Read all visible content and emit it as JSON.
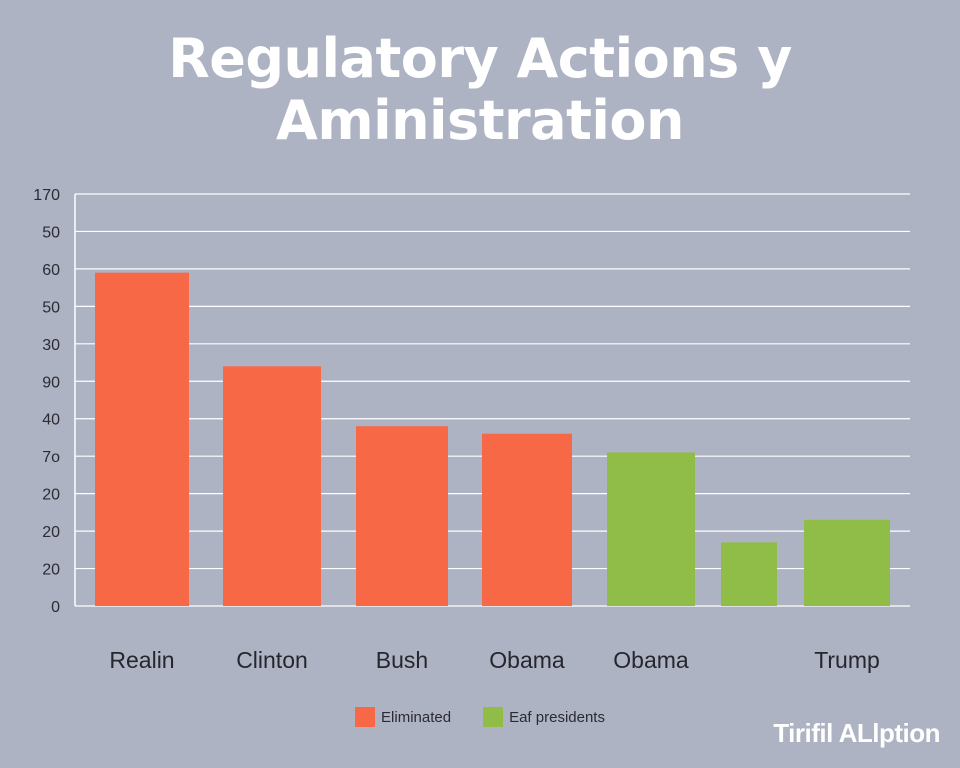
{
  "chart_data": {
    "type": "bar",
    "title_lines": [
      "Regulatory Actions y",
      "Aministration"
    ],
    "categories": [
      "Realin",
      "Clinton",
      "Bush",
      "Obama",
      "Obama",
      "",
      "Trump"
    ],
    "values": [
      89,
      64,
      48,
      46,
      41,
      17,
      23
    ],
    "bar_colors": [
      "#f76846",
      "#f76846",
      "#f76846",
      "#f76846",
      "#8fbd48",
      "#8fbd48",
      "#8fbd48"
    ],
    "y_ticks": [
      "0",
      "20",
      "20",
      "20",
      "7o",
      "40",
      "90",
      "30",
      "50",
      "60",
      "50",
      "170"
    ],
    "ylim": [
      0,
      110
    ],
    "xlabel": "",
    "ylabel": "",
    "grid": true,
    "legend_position": "bottom-center",
    "legend": [
      {
        "label": "Eliminated",
        "color": "#f76846"
      },
      {
        "label": "Eaf presidents",
        "color": "#8fbd48"
      }
    ]
  },
  "watermark": "Tirifil ALlption"
}
